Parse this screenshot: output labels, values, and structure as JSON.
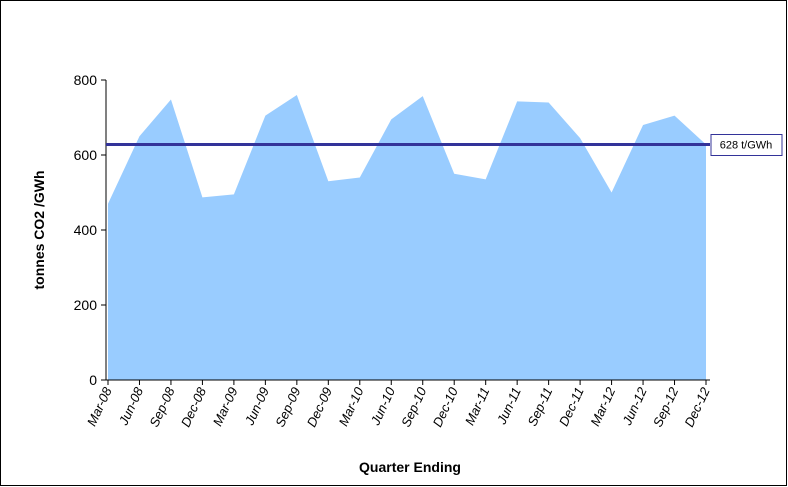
{
  "chart_data": {
    "type": "area",
    "x_label": "Quarter Ending",
    "y_label": "tonnes CO2 /GWh",
    "categories": [
      "Mar-08",
      "Jun-08",
      "Sep-08",
      "Dec-08",
      "Mar-09",
      "Jun-09",
      "Sep-09",
      "Dec-09",
      "Mar-10",
      "Jun-10",
      "Sep-10",
      "Dec-10",
      "Mar-11",
      "Jun-11",
      "Sep-11",
      "Dec-11",
      "Mar-12",
      "Jun-12",
      "Sep-12",
      "Dec-12"
    ],
    "values": [
      470,
      650,
      748,
      487,
      495,
      705,
      760,
      530,
      540,
      695,
      757,
      550,
      535,
      743,
      740,
      645,
      500,
      680,
      705,
      628
    ],
    "color": "#99ccff",
    "reference_line": {
      "value": 628,
      "label": "628 t/GWh",
      "color": "#333399"
    },
    "ylim": [
      0,
      800
    ],
    "yticks": [
      0,
      200,
      400,
      600,
      800
    ]
  }
}
